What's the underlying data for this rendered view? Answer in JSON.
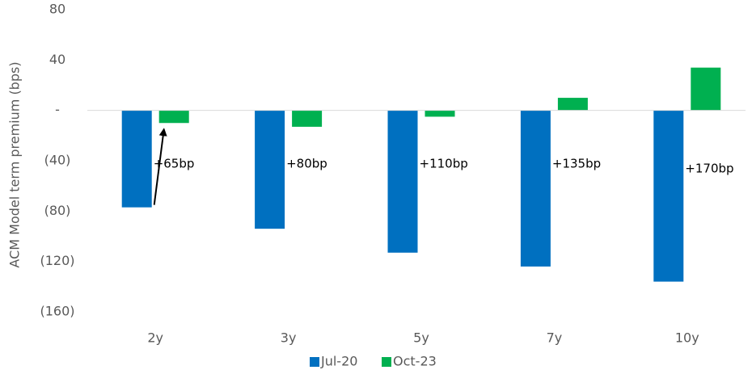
{
  "chart_data": {
    "type": "bar",
    "ylabel": "ACM Model term premium (bps)",
    "ylim": [
      -160,
      80
    ],
    "yticks": [
      80,
      40,
      0,
      -40,
      -80,
      -120,
      -160
    ],
    "ytick_labels": [
      "80",
      "40",
      "-",
      "(40)",
      "(80)",
      "(120)",
      "(160)"
    ],
    "categories": [
      "2y",
      "3y",
      "5y",
      "7y",
      "10y"
    ],
    "series": [
      {
        "name": "Jul-20",
        "color": "#0070C0",
        "values": [
          -77,
          -94,
          -113,
          -124,
          -136
        ]
      },
      {
        "name": "Oct-23",
        "color": "#00B050",
        "values": [
          -10,
          -13,
          -5,
          10,
          34
        ]
      }
    ],
    "annotations": [
      "+65bp",
      "+80bp",
      "+110bp",
      "+135bp",
      "+170bp"
    ],
    "arrow": {
      "category": "2y",
      "from_series": "Jul-20",
      "to_series": "Oct-23"
    },
    "grid": false,
    "legend": "bottom"
  }
}
